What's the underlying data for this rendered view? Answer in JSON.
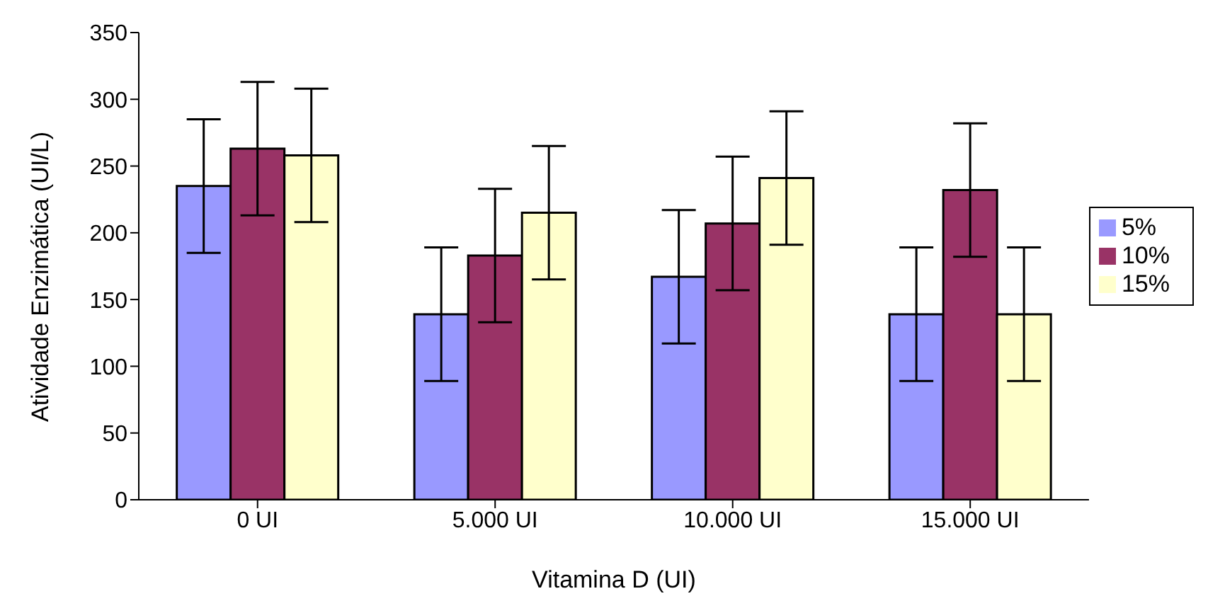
{
  "chart_data": {
    "type": "bar",
    "xlabel": "Vitamina D (UI)",
    "ylabel": "Atividade Enzimática (UI/L)",
    "categories": [
      "0 UI",
      "5.000 UI",
      "10.000 UI",
      "15.000 UI"
    ],
    "series": [
      {
        "name": "5%",
        "color": "#9999ff",
        "values": [
          235,
          139,
          167,
          139
        ],
        "errors": [
          50,
          50,
          50,
          50
        ]
      },
      {
        "name": "10%",
        "color": "#993366",
        "values": [
          263,
          183,
          207,
          232
        ],
        "errors": [
          50,
          50,
          50,
          50
        ]
      },
      {
        "name": "15%",
        "color": "#ffffcc",
        "values": [
          258,
          215,
          241,
          139
        ],
        "errors": [
          50,
          50,
          50,
          50
        ]
      }
    ],
    "ylim": [
      0,
      350
    ],
    "yticks": [
      0,
      50,
      100,
      150,
      200,
      250,
      300,
      350
    ],
    "grid": false,
    "legend": "right"
  }
}
